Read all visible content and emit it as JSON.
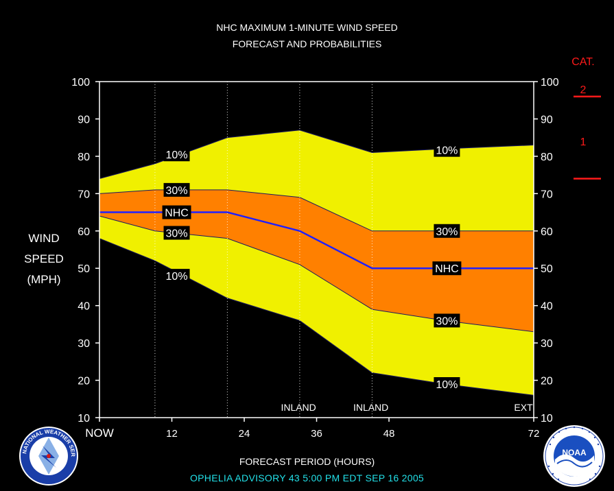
{
  "chart_data": {
    "type": "area",
    "title": "NHC MAXIMUM 1-MINUTE WIND SPEED",
    "subtitle": "FORECAST AND PROBABILITIES",
    "xlabel": "FORECAST PERIOD (HOURS)",
    "ylabel_lines": [
      "WIND",
      "SPEED",
      "(MPH)"
    ],
    "xlim": [
      0,
      72
    ],
    "ylim": [
      10,
      100
    ],
    "x_ticks": [
      {
        "x": 0,
        "label": "NOW"
      },
      {
        "x": 12,
        "label": "12"
      },
      {
        "x": 24,
        "label": "24"
      },
      {
        "x": 36,
        "label": "36"
      },
      {
        "x": 48,
        "label": "48"
      },
      {
        "x": 72,
        "label": "72"
      }
    ],
    "y_ticks": [
      10,
      20,
      30,
      40,
      50,
      60,
      70,
      80,
      90,
      100
    ],
    "vertical_gridlines_x": [
      9.2,
      21.2,
      33.2,
      45.2
    ],
    "bottom_annotations": [
      {
        "x": 33,
        "label": "INLAND"
      },
      {
        "x": 45,
        "label": "INLAND"
      },
      {
        "x": 70.3,
        "label": "EXT"
      }
    ],
    "x": [
      0,
      9.2,
      21.2,
      33.2,
      45.2,
      57.2,
      72
    ],
    "series": [
      {
        "name": "10%",
        "values": [
          74,
          78,
          85,
          87,
          81,
          82,
          83
        ],
        "color": "#f0f000"
      },
      {
        "name": "30%",
        "values": [
          70,
          71,
          71,
          69,
          60,
          60,
          60
        ],
        "color": "#ff8000"
      },
      {
        "name": "NHC",
        "values": [
          65,
          65,
          65,
          60,
          50,
          50,
          50
        ],
        "color": "#2020ff"
      },
      {
        "name": "30%",
        "values": [
          64,
          60,
          58,
          51,
          39,
          36,
          33
        ],
        "color": "#ff8000"
      },
      {
        "name": "10%",
        "values": [
          58,
          52,
          42,
          36,
          22,
          19,
          16
        ],
        "color": "#f0f000"
      }
    ],
    "band_labels": [
      {
        "text": "10%",
        "x": 12.8,
        "y": 80.5
      },
      {
        "text": "30%",
        "x": 12.8,
        "y": 71.0
      },
      {
        "text": "NHC",
        "x": 12.8,
        "y": 65.0
      },
      {
        "text": "30%",
        "x": 12.8,
        "y": 59.5
      },
      {
        "text": "10%",
        "x": 12.8,
        "y": 48.0
      },
      {
        "text": "10%",
        "x": 57.6,
        "y": 81.7
      },
      {
        "text": "30%",
        "x": 57.6,
        "y": 60.0
      },
      {
        "text": "NHC",
        "x": 57.6,
        "y": 50.0
      },
      {
        "text": "30%",
        "x": 57.6,
        "y": 36.0
      },
      {
        "text": "10%",
        "x": 57.6,
        "y": 19.0
      }
    ],
    "category": {
      "title": "CAT.",
      "labels": [
        {
          "text": "2",
          "y": 98
        },
        {
          "text": "1",
          "y": 84
        }
      ],
      "lines_y": [
        96,
        74
      ]
    },
    "colors": {
      "axis": "#ffffff",
      "outer_band": "#f0f000",
      "inner_band": "#ff8000",
      "forecast_line": "#2020ff",
      "category": "#ff1a1a",
      "advisory": "#22e0e8"
    }
  },
  "advisory": "OPHELIA   ADVISORY  43 5:00  PM  EDT  SEP  16  2005",
  "logos": {
    "left": {
      "name": "nws-logo",
      "text": "NATIONAL WEATHER SERVICE"
    },
    "right": {
      "name": "noaa-logo",
      "text": "NOAA"
    }
  }
}
